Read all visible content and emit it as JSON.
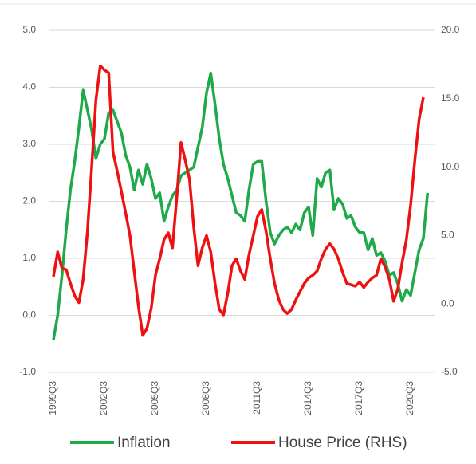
{
  "chart_data": {
    "type": "line",
    "categories": [
      "1999Q3",
      null,
      null,
      null,
      null,
      null,
      null,
      null,
      null,
      null,
      null,
      null,
      "2002Q3",
      null,
      null,
      null,
      null,
      null,
      null,
      null,
      null,
      null,
      null,
      null,
      "2005Q3",
      null,
      null,
      null,
      null,
      null,
      null,
      null,
      null,
      null,
      null,
      null,
      "2008Q3",
      null,
      null,
      null,
      null,
      null,
      null,
      null,
      null,
      null,
      null,
      null,
      "2011Q3",
      null,
      null,
      null,
      null,
      null,
      null,
      null,
      null,
      null,
      null,
      null,
      "2014Q3",
      null,
      null,
      null,
      null,
      null,
      null,
      null,
      null,
      null,
      null,
      null,
      "2017Q3",
      null,
      null,
      null,
      null,
      null,
      null,
      null,
      null,
      null,
      null,
      null,
      "2020Q3",
      null,
      null,
      null,
      null
    ],
    "series": [
      {
        "name": "Inflation",
        "color": "#1faa4a",
        "values": [
          -0.43,
          0.0,
          0.7,
          1.5,
          2.2,
          2.7,
          3.3,
          3.95,
          3.6,
          3.25,
          2.75,
          3.0,
          3.1,
          3.55,
          3.6,
          3.4,
          3.2,
          2.8,
          2.6,
          2.2,
          2.55,
          2.3,
          2.65,
          2.4,
          2.05,
          2.15,
          1.65,
          1.9,
          2.1,
          2.2,
          2.45,
          2.5,
          2.55,
          2.6,
          2.95,
          3.3,
          3.9,
          4.25,
          3.7,
          3.1,
          2.65,
          2.4,
          2.1,
          1.8,
          1.75,
          1.65,
          2.2,
          2.65,
          2.7,
          2.7,
          2.0,
          1.45,
          1.25,
          1.4,
          1.5,
          1.55,
          1.45,
          1.6,
          1.5,
          1.8,
          1.9,
          1.4,
          2.4,
          2.25,
          2.5,
          2.55,
          1.85,
          2.05,
          1.95,
          1.7,
          1.75,
          1.55,
          1.45,
          1.45,
          1.15,
          1.35,
          1.05,
          1.1,
          0.95,
          0.7,
          0.75,
          0.55,
          0.25,
          0.45,
          0.35,
          0.75,
          1.15,
          1.35,
          2.15
        ]
      },
      {
        "name": "House Price (RHS)",
        "color": "#ee1111",
        "axis": "y2",
        "values": [
          2.0,
          3.8,
          2.6,
          2.5,
          1.5,
          0.6,
          0.1,
          1.8,
          5.3,
          10.0,
          14.9,
          17.4,
          17.1,
          16.9,
          11.1,
          9.7,
          8.2,
          6.6,
          5.0,
          2.4,
          -0.2,
          -2.3,
          -1.8,
          -0.3,
          2.1,
          3.3,
          4.7,
          5.2,
          4.1,
          7.8,
          11.8,
          10.5,
          9.1,
          5.6,
          2.8,
          4.1,
          5.0,
          3.8,
          1.5,
          -0.4,
          -0.8,
          0.8,
          2.8,
          3.3,
          2.4,
          1.8,
          3.6,
          5.0,
          6.4,
          6.9,
          5.3,
          3.3,
          1.5,
          0.3,
          -0.4,
          -0.7,
          -0.4,
          0.3,
          0.9,
          1.5,
          1.9,
          2.1,
          2.4,
          3.3,
          4.0,
          4.4,
          4.0,
          3.3,
          2.3,
          1.5,
          1.4,
          1.3,
          1.6,
          1.2,
          1.6,
          1.9,
          2.1,
          3.3,
          2.7,
          1.8,
          0.2,
          1.1,
          3.0,
          4.7,
          7.2,
          10.5,
          13.5,
          15.1,
          null
        ]
      }
    ],
    "ylim": [
      -1,
      5
    ],
    "yticks": [
      {
        "value": -1,
        "label": "-1.0"
      },
      {
        "value": 0,
        "label": "0.0"
      },
      {
        "value": 1,
        "label": "1.0"
      },
      {
        "value": 2,
        "label": "2.0"
      },
      {
        "value": 3,
        "label": "3.0"
      },
      {
        "value": 4,
        "label": "4.0"
      },
      {
        "value": 5,
        "label": "5.0"
      }
    ],
    "y2lim": [
      -5,
      20
    ],
    "y2ticks": [
      {
        "value": -5,
        "label": "-5.0"
      },
      {
        "value": 0,
        "label": "0.0"
      },
      {
        "value": 5,
        "label": "5.0"
      },
      {
        "value": 10,
        "label": "10.0"
      },
      {
        "value": 15,
        "label": "15.0"
      },
      {
        "value": 20,
        "label": "20.0"
      }
    ],
    "grid": true,
    "legend": "bottom"
  }
}
